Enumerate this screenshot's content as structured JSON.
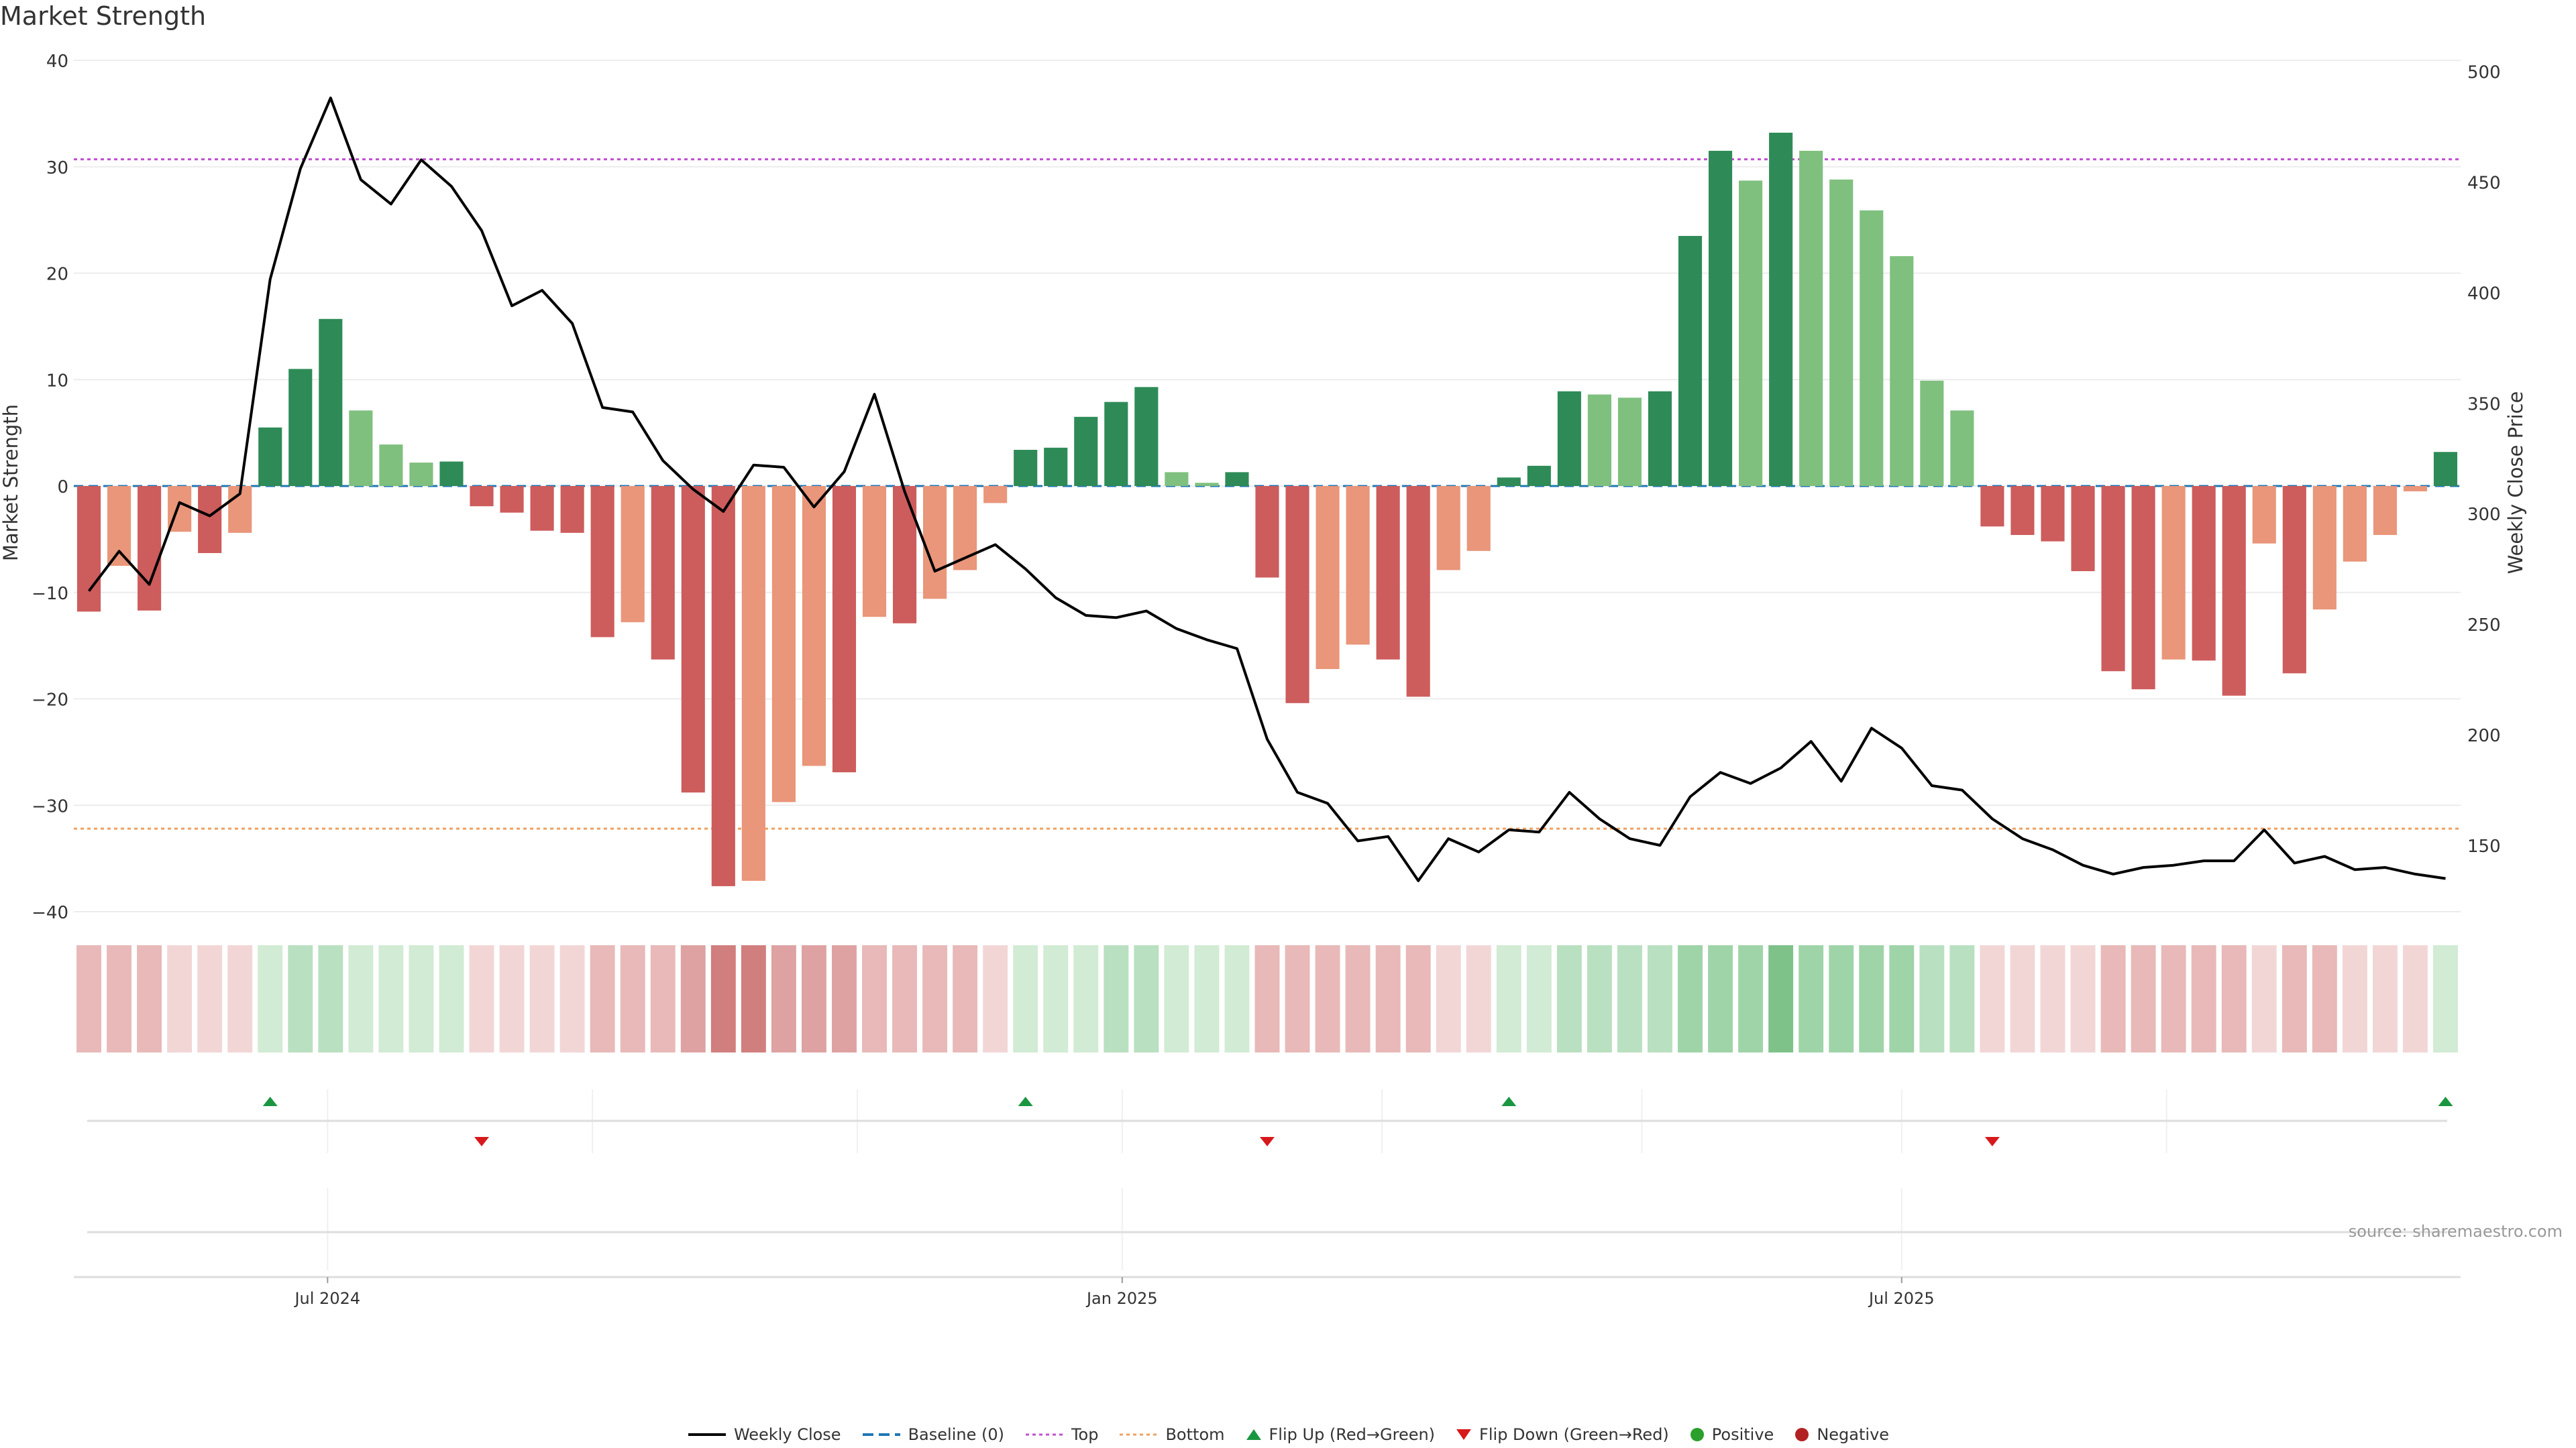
{
  "chart_data": {
    "title": "Market Strength",
    "source": "source: sharemaestro.com",
    "y_left": {
      "label": "Market Strength",
      "ylim": [
        -40,
        40
      ],
      "ticks": [
        40,
        30,
        20,
        10,
        0,
        -10,
        -20,
        -30,
        -40
      ],
      "tick_labels": [
        "40",
        "30",
        "20",
        "10",
        "0",
        "−10",
        "−20",
        "−30",
        "−40"
      ]
    },
    "y_right": {
      "label": "Weekly Close Price",
      "ylim": [
        120,
        505
      ],
      "ticks": [
        500,
        450,
        400,
        350,
        300,
        250,
        200,
        150
      ]
    },
    "x": {
      "tick_labels": [
        "Jul 2024",
        "Jan 2025",
        "Jul 2025"
      ],
      "tick_index": [
        8.4,
        34.7,
        60.5
      ]
    },
    "reference_lines": {
      "baseline": 0,
      "top": 30.7,
      "bottom": -32.2
    },
    "series": [
      {
        "type": "bar",
        "values": [
          -11.8,
          -7.5,
          -11.7,
          -4.3,
          -6.3,
          -4.4,
          5.5,
          11,
          15.7,
          7.1,
          3.9,
          2.2,
          2.3,
          -1.9,
          -2.5,
          -4.2,
          -4.4,
          -14.2,
          -12.8,
          -16.3,
          -28.8,
          -37.6,
          -37.1,
          -29.7,
          -26.3,
          -26.9,
          -12.3,
          -12.9,
          -10.6,
          -7.9,
          -1.6,
          3.4,
          3.6,
          6.5,
          7.9,
          9.3,
          1.3,
          0.3,
          1.3,
          -8.6,
          -20.4,
          -17.2,
          -14.9,
          -16.3,
          -19.8,
          -7.9,
          -6.1,
          0.8,
          1.9,
          8.9,
          8.6,
          8.3,
          8.9,
          23.5,
          31.5,
          28.7,
          33.2,
          31.5,
          28.8,
          25.9,
          21.6,
          9.9,
          7.1,
          -3.8,
          -4.6,
          -5.2,
          -8,
          -17.4,
          -19.1,
          -16.3,
          -16.4,
          -19.7,
          -5.4,
          -17.6,
          -11.6,
          -7.1,
          -4.6,
          -0.5,
          3.2
        ]
      },
      {
        "name": "Weekly Close",
        "type": "line",
        "values": [
          265,
          283,
          268,
          305,
          299,
          309,
          406,
          456,
          488,
          451,
          440,
          460,
          448,
          428,
          394,
          401,
          386,
          348,
          346,
          324,
          311,
          301,
          322,
          321,
          303,
          319,
          354,
          310,
          274,
          280,
          286,
          275,
          262,
          254,
          253,
          256,
          248,
          243,
          239,
          198,
          174,
          169,
          152,
          154,
          134,
          153,
          147,
          157,
          156,
          174,
          162,
          153,
          150,
          172,
          183,
          178,
          185,
          197,
          179,
          203,
          194,
          177,
          175,
          162,
          153,
          148,
          141,
          137,
          140,
          141,
          143,
          143,
          157,
          142,
          145,
          139,
          140,
          137,
          135
        ]
      }
    ],
    "heatmap_levels": [
      -2,
      -2,
      -2,
      -1,
      -1,
      -1,
      1,
      2,
      2,
      1,
      1,
      1,
      1,
      -1,
      -1,
      -1,
      -1,
      -2,
      -2,
      -2,
      -3,
      -4,
      -4,
      -3,
      -3,
      -3,
      -2,
      -2,
      -2,
      -2,
      -1,
      1,
      1,
      1,
      2,
      2,
      1,
      1,
      1,
      -2,
      -2,
      -2,
      -2,
      -2,
      -2,
      -1,
      -1,
      1,
      1,
      2,
      2,
      2,
      2,
      3,
      3,
      3,
      4,
      3,
      3,
      3,
      3,
      2,
      2,
      -1,
      -1,
      -1,
      -1,
      -2,
      -2,
      -2,
      -2,
      -2,
      -1,
      -2,
      -2,
      -1,
      -1,
      -1,
      1
    ],
    "flip_up_index": [
      6,
      31,
      47,
      78
    ],
    "flip_down_index": [
      13,
      39,
      63
    ],
    "legend": [
      "Weekly Close",
      "Baseline (0)",
      "Top",
      "Bottom",
      "Flip Up (Red→Green)",
      "Flip Down (Green→Red)",
      "Positive",
      "Negative"
    ],
    "colors": {
      "pos_strong": "#2e8b57",
      "pos_light": "#7fc07f",
      "neg_strong": "#cd5c5c",
      "neg_light": "#e9967a",
      "line": "#000000",
      "baseline": "#1f77b4",
      "top": "#c050d0",
      "bottom": "#f0a060",
      "flip_up": "#1a9641",
      "flip_down": "#d7191c",
      "positive": "#2ca02c",
      "negative": "#b22222",
      "heat_pos": [
        "#d2ebd4",
        "#b9e0c0",
        "#9fd4a9",
        "#7ec289",
        "#4eae5b"
      ],
      "heat_neg": [
        "#f2d6d6",
        "#e8b9b8",
        "#dea2a2",
        "#d07f7e",
        "#c05553"
      ]
    }
  }
}
